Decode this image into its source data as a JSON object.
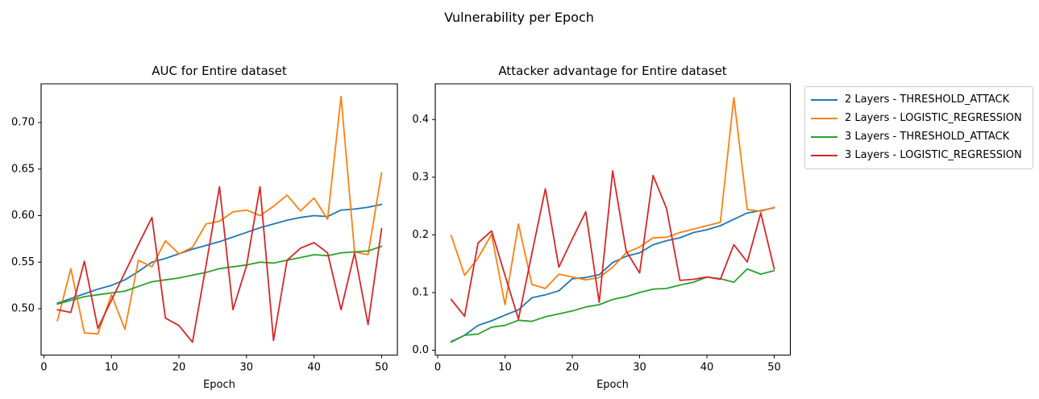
{
  "figure": {
    "title": "Vulnerability per Epoch",
    "background_color": "#ffffff"
  },
  "legend": {
    "position": "outside upper right",
    "border_color": "#cccccc"
  },
  "chart_data": [
    {
      "type": "line",
      "title": "AUC for Entire dataset",
      "xlabel": "Epoch",
      "ylabel": "",
      "grid": false,
      "x": [
        2,
        4,
        6,
        8,
        10,
        12,
        14,
        16,
        18,
        20,
        22,
        24,
        26,
        28,
        30,
        32,
        34,
        36,
        38,
        40,
        42,
        44,
        46,
        48,
        50
      ],
      "xlim": [
        -0.4,
        52.4
      ],
      "ylim": [
        0.45,
        0.741
      ],
      "xtick_values": [
        0,
        10,
        20,
        30,
        40,
        50
      ],
      "xtick_labels": [
        "0",
        "10",
        "20",
        "30",
        "40",
        "50"
      ],
      "ytick_values": [
        0.5,
        0.55,
        0.6,
        0.65,
        0.7
      ],
      "ytick_labels": [
        "0.50",
        "0.55",
        "0.60",
        "0.65",
        "0.70"
      ],
      "series": [
        {
          "name": "2 Layers - THRESHOLD_ATTACK",
          "color": "#1f77b4",
          "values": [
            0.506,
            0.511,
            0.516,
            0.521,
            0.525,
            0.531,
            0.54,
            0.55,
            0.554,
            0.559,
            0.564,
            0.568,
            0.572,
            0.577,
            0.582,
            0.587,
            0.591,
            0.595,
            0.598,
            0.6,
            0.599,
            0.606,
            0.607,
            0.609,
            0.612
          ]
        },
        {
          "name": "2 Layers - LOGISTIC_REGRESSION",
          "color": "#ff7f0e",
          "values": [
            0.487,
            0.543,
            0.474,
            0.473,
            0.515,
            0.478,
            0.552,
            0.545,
            0.573,
            0.559,
            0.566,
            0.591,
            0.594,
            0.604,
            0.606,
            0.6,
            0.61,
            0.622,
            0.605,
            0.619,
            0.596,
            0.728,
            0.561,
            0.558,
            0.646
          ]
        },
        {
          "name": "3 Layers - THRESHOLD_ATTACK",
          "color": "#2ca02c",
          "values": [
            0.505,
            0.509,
            0.513,
            0.515,
            0.517,
            0.519,
            0.524,
            0.529,
            0.531,
            0.533,
            0.536,
            0.539,
            0.543,
            0.545,
            0.547,
            0.55,
            0.549,
            0.552,
            0.555,
            0.558,
            0.557,
            0.56,
            0.561,
            0.562,
            0.567
          ]
        },
        {
          "name": "3 Layers - LOGISTIC_REGRESSION",
          "color": "#d62728",
          "values": [
            0.499,
            0.496,
            0.551,
            0.479,
            0.509,
            0.539,
            0.569,
            0.598,
            0.49,
            0.482,
            0.464,
            0.546,
            0.631,
            0.499,
            0.546,
            0.631,
            0.466,
            0.552,
            0.565,
            0.571,
            0.56,
            0.499,
            0.56,
            0.483,
            0.586
          ]
        }
      ]
    },
    {
      "type": "line",
      "title": "Attacker advantage for Entire dataset",
      "xlabel": "Epoch",
      "ylabel": "",
      "grid": false,
      "x": [
        2,
        4,
        6,
        8,
        10,
        12,
        14,
        16,
        18,
        20,
        22,
        24,
        26,
        28,
        30,
        32,
        34,
        36,
        38,
        40,
        42,
        44,
        46,
        48,
        50
      ],
      "xlim": [
        -0.4,
        52.4
      ],
      "ylim": [
        -0.008,
        0.456
      ],
      "xtick_values": [
        0,
        10,
        20,
        30,
        40,
        50
      ],
      "xtick_labels": [
        "0",
        "10",
        "20",
        "30",
        "40",
        "50"
      ],
      "ytick_values": [
        0.0,
        0.1,
        0.2,
        0.3,
        0.4
      ],
      "ytick_labels": [
        "0.0",
        "0.1",
        "0.2",
        "0.3",
        "0.4"
      ],
      "series": [
        {
          "name": "2 Layers - THRESHOLD_ATTACK",
          "color": "#1f77b4",
          "values": [
            0.015,
            0.026,
            0.043,
            0.051,
            0.061,
            0.07,
            0.091,
            0.096,
            0.103,
            0.124,
            0.126,
            0.131,
            0.152,
            0.163,
            0.169,
            0.183,
            0.19,
            0.195,
            0.204,
            0.209,
            0.216,
            0.227,
            0.238,
            0.242,
            0.247
          ]
        },
        {
          "name": "2 Layers - LOGISTIC_REGRESSION",
          "color": "#ff7f0e",
          "values": [
            0.199,
            0.13,
            0.16,
            0.201,
            0.079,
            0.219,
            0.114,
            0.107,
            0.132,
            0.127,
            0.122,
            0.126,
            0.144,
            0.169,
            0.179,
            0.195,
            0.196,
            0.204,
            0.21,
            0.216,
            0.222,
            0.438,
            0.244,
            0.241,
            0.248
          ]
        },
        {
          "name": "3 Layers - THRESHOLD_ATTACK",
          "color": "#2ca02c",
          "values": [
            0.014,
            0.026,
            0.028,
            0.04,
            0.043,
            0.052,
            0.05,
            0.058,
            0.063,
            0.068,
            0.075,
            0.079,
            0.088,
            0.093,
            0.1,
            0.106,
            0.107,
            0.113,
            0.118,
            0.127,
            0.124,
            0.118,
            0.141,
            0.132,
            0.138
          ]
        },
        {
          "name": "3 Layers - LOGISTIC_REGRESSION",
          "color": "#d62728",
          "values": [
            0.088,
            0.059,
            0.186,
            0.207,
            0.13,
            0.054,
            0.168,
            0.28,
            0.144,
            0.193,
            0.24,
            0.083,
            0.311,
            0.172,
            0.134,
            0.303,
            0.246,
            0.121,
            0.123,
            0.127,
            0.123,
            0.183,
            0.153,
            0.238,
            0.141
          ]
        }
      ]
    }
  ]
}
